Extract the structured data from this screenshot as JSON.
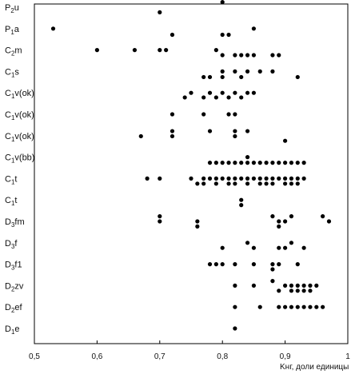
{
  "chart_data": {
    "type": "scatter",
    "title": "",
    "xlabel": "Kнг, доли единицы",
    "ylabel": "",
    "xlim": [
      0.5,
      1.0
    ],
    "x_ticks": [
      "0,5",
      "0,6",
      "0,7",
      "0,8",
      "0,9",
      "1"
    ],
    "categories": [
      "P2u",
      "P1a",
      "C2m",
      "C1s",
      "C1v(ok)",
      "C1v(ok)",
      "C1v(ok)",
      "C1v(bb)",
      "C1t",
      "C1t",
      "D3fm",
      "D3f",
      "D3f1",
      "D2zv",
      "D2ef",
      "D1e"
    ],
    "category_labels": [
      {
        "base": "P",
        "sub": "2",
        "rest": "u"
      },
      {
        "base": "P",
        "sub": "1",
        "rest": "a"
      },
      {
        "base": "C",
        "sub": "2",
        "rest": "m"
      },
      {
        "base": "C",
        "sub": "1",
        "rest": "s"
      },
      {
        "base": "C",
        "sub": "1",
        "rest": "v(ok)"
      },
      {
        "base": "C",
        "sub": "1",
        "rest": "v(ok)"
      },
      {
        "base": "C",
        "sub": "1",
        "rest": "v(ok)"
      },
      {
        "base": "C",
        "sub": "1",
        "rest": "v(bb)"
      },
      {
        "base": "C",
        "sub": "1",
        "rest": "t"
      },
      {
        "base": "C",
        "sub": "1",
        "rest": "t"
      },
      {
        "base": "D",
        "sub": "3",
        "rest": "fm"
      },
      {
        "base": "D",
        "sub": "3",
        "rest": "f"
      },
      {
        "base": "D",
        "sub": "3",
        "rest": "f1"
      },
      {
        "base": "D",
        "sub": "2",
        "rest": "zv"
      },
      {
        "base": "D",
        "sub": "2",
        "rest": "ef"
      },
      {
        "base": "D",
        "sub": "1",
        "rest": "e"
      }
    ],
    "marker_color": "#000000",
    "grid": false,
    "points": [
      {
        "x": 0.8,
        "c": 0,
        "o": -0.5
      },
      {
        "x": 0.7,
        "c": 0,
        "o": 0.5
      },
      {
        "x": 0.53,
        "c": 1,
        "o": 0
      },
      {
        "x": 0.85,
        "c": 1,
        "o": 0
      },
      {
        "x": 0.72,
        "c": 1,
        "o": 0.6
      },
      {
        "x": 0.8,
        "c": 1,
        "o": 0.6
      },
      {
        "x": 0.81,
        "c": 1,
        "o": 0.6
      },
      {
        "x": 0.6,
        "c": 2,
        "o": 0
      },
      {
        "x": 0.66,
        "c": 2,
        "o": 0
      },
      {
        "x": 0.7,
        "c": 2,
        "o": 0
      },
      {
        "x": 0.71,
        "c": 2,
        "o": 0
      },
      {
        "x": 0.79,
        "c": 2,
        "o": 0
      },
      {
        "x": 0.8,
        "c": 2,
        "o": 0.5
      },
      {
        "x": 0.82,
        "c": 2,
        "o": 0.5
      },
      {
        "x": 0.83,
        "c": 2,
        "o": 0.5
      },
      {
        "x": 0.84,
        "c": 2,
        "o": 0.5
      },
      {
        "x": 0.85,
        "c": 2,
        "o": 0.5
      },
      {
        "x": 0.88,
        "c": 2,
        "o": 0.5
      },
      {
        "x": 0.89,
        "c": 2,
        "o": 0.5
      },
      {
        "x": 0.8,
        "c": 3,
        "o": 0
      },
      {
        "x": 0.82,
        "c": 3,
        "o": 0
      },
      {
        "x": 0.84,
        "c": 3,
        "o": 0
      },
      {
        "x": 0.86,
        "c": 3,
        "o": 0
      },
      {
        "x": 0.88,
        "c": 3,
        "o": 0
      },
      {
        "x": 0.77,
        "c": 3,
        "o": 0.55
      },
      {
        "x": 0.78,
        "c": 3,
        "o": 0.55
      },
      {
        "x": 0.8,
        "c": 3,
        "o": 0.55
      },
      {
        "x": 0.92,
        "c": 3,
        "o": 0.55
      },
      {
        "x": 0.83,
        "c": 3,
        "o": 0.55
      },
      {
        "x": 0.75,
        "c": 4,
        "o": 0
      },
      {
        "x": 0.78,
        "c": 4,
        "o": 0
      },
      {
        "x": 0.8,
        "c": 4,
        "o": 0
      },
      {
        "x": 0.82,
        "c": 4,
        "o": 0
      },
      {
        "x": 0.84,
        "c": 4,
        "o": 0
      },
      {
        "x": 0.85,
        "c": 4,
        "o": 0
      },
      {
        "x": 0.74,
        "c": 4,
        "o": 0.45
      },
      {
        "x": 0.77,
        "c": 4,
        "o": 0.45
      },
      {
        "x": 0.79,
        "c": 4,
        "o": 0.45
      },
      {
        "x": 0.81,
        "c": 4,
        "o": 0.45
      },
      {
        "x": 0.83,
        "c": 4,
        "o": 0.45
      },
      {
        "x": 0.72,
        "c": 5,
        "o": 0
      },
      {
        "x": 0.77,
        "c": 5,
        "o": 0
      },
      {
        "x": 0.81,
        "c": 5,
        "o": 0
      },
      {
        "x": 0.82,
        "c": 5,
        "o": 0
      },
      {
        "x": 0.72,
        "c": 6,
        "o": -0.45
      },
      {
        "x": 0.78,
        "c": 6,
        "o": -0.45
      },
      {
        "x": 0.82,
        "c": 6,
        "o": -0.45
      },
      {
        "x": 0.84,
        "c": 6,
        "o": -0.45
      },
      {
        "x": 0.67,
        "c": 6,
        "o": 0.05
      },
      {
        "x": 0.72,
        "c": 6,
        "o": 0.05
      },
      {
        "x": 0.82,
        "c": 6,
        "o": 0.05
      },
      {
        "x": 0.9,
        "c": 6,
        "o": 0.5
      },
      {
        "x": 0.84,
        "c": 7,
        "o": 0
      },
      {
        "x": 0.78,
        "c": 7,
        "o": 0.55
      },
      {
        "x": 0.79,
        "c": 7,
        "o": 0.55
      },
      {
        "x": 0.8,
        "c": 7,
        "o": 0.55
      },
      {
        "x": 0.81,
        "c": 7,
        "o": 0.55
      },
      {
        "x": 0.82,
        "c": 7,
        "o": 0.55
      },
      {
        "x": 0.83,
        "c": 7,
        "o": 0.55
      },
      {
        "x": 0.84,
        "c": 7,
        "o": 0.55
      },
      {
        "x": 0.85,
        "c": 7,
        "o": 0.55
      },
      {
        "x": 0.86,
        "c": 7,
        "o": 0.55
      },
      {
        "x": 0.87,
        "c": 7,
        "o": 0.55
      },
      {
        "x": 0.88,
        "c": 7,
        "o": 0.55
      },
      {
        "x": 0.89,
        "c": 7,
        "o": 0.55
      },
      {
        "x": 0.9,
        "c": 7,
        "o": 0.55
      },
      {
        "x": 0.91,
        "c": 7,
        "o": 0.55
      },
      {
        "x": 0.92,
        "c": 7,
        "o": 0.55
      },
      {
        "x": 0.93,
        "c": 7,
        "o": 0.55
      },
      {
        "x": 0.68,
        "c": 8,
        "o": 0
      },
      {
        "x": 0.7,
        "c": 8,
        "o": 0
      },
      {
        "x": 0.75,
        "c": 8,
        "o": 0
      },
      {
        "x": 0.77,
        "c": 8,
        "o": 0
      },
      {
        "x": 0.78,
        "c": 8,
        "o": 0
      },
      {
        "x": 0.79,
        "c": 8,
        "o": 0
      },
      {
        "x": 0.8,
        "c": 8,
        "o": 0
      },
      {
        "x": 0.81,
        "c": 8,
        "o": 0
      },
      {
        "x": 0.82,
        "c": 8,
        "o": 0
      },
      {
        "x": 0.83,
        "c": 8,
        "o": 0
      },
      {
        "x": 0.84,
        "c": 8,
        "o": 0
      },
      {
        "x": 0.85,
        "c": 8,
        "o": 0
      },
      {
        "x": 0.86,
        "c": 8,
        "o": 0
      },
      {
        "x": 0.87,
        "c": 8,
        "o": 0
      },
      {
        "x": 0.88,
        "c": 8,
        "o": 0
      },
      {
        "x": 0.89,
        "c": 8,
        "o": 0
      },
      {
        "x": 0.9,
        "c": 8,
        "o": 0
      },
      {
        "x": 0.91,
        "c": 8,
        "o": 0
      },
      {
        "x": 0.92,
        "c": 8,
        "o": 0
      },
      {
        "x": 0.93,
        "c": 8,
        "o": 0
      },
      {
        "x": 0.76,
        "c": 8,
        "o": 0.5
      },
      {
        "x": 0.77,
        "c": 8,
        "o": 0.5
      },
      {
        "x": 0.79,
        "c": 8,
        "o": 0.5
      },
      {
        "x": 0.81,
        "c": 8,
        "o": 0.5
      },
      {
        "x": 0.82,
        "c": 8,
        "o": 0.5
      },
      {
        "x": 0.84,
        "c": 8,
        "o": 0.5
      },
      {
        "x": 0.86,
        "c": 8,
        "o": 0.5
      },
      {
        "x": 0.87,
        "c": 8,
        "o": 0.5
      },
      {
        "x": 0.88,
        "c": 8,
        "o": 0.5
      },
      {
        "x": 0.9,
        "c": 8,
        "o": 0.5
      },
      {
        "x": 0.91,
        "c": 8,
        "o": 0.5
      },
      {
        "x": 0.92,
        "c": 8,
        "o": 0.5
      },
      {
        "x": 0.83,
        "c": 9,
        "o": 0
      },
      {
        "x": 0.83,
        "c": 9,
        "o": 0.5
      },
      {
        "x": 0.7,
        "c": 10,
        "o": -0.5
      },
      {
        "x": 0.88,
        "c": 10,
        "o": -0.5
      },
      {
        "x": 0.91,
        "c": 10,
        "o": -0.5
      },
      {
        "x": 0.96,
        "c": 10,
        "o": -0.5
      },
      {
        "x": 0.7,
        "c": 10,
        "o": 0
      },
      {
        "x": 0.76,
        "c": 10,
        "o": 0
      },
      {
        "x": 0.89,
        "c": 10,
        "o": 0
      },
      {
        "x": 0.9,
        "c": 10,
        "o": 0
      },
      {
        "x": 0.97,
        "c": 10,
        "o": 0
      },
      {
        "x": 0.76,
        "c": 10,
        "o": 0.5
      },
      {
        "x": 0.89,
        "c": 10,
        "o": 0.5
      },
      {
        "x": 0.84,
        "c": 11,
        "o": 0
      },
      {
        "x": 0.91,
        "c": 11,
        "o": 0
      },
      {
        "x": 0.8,
        "c": 11,
        "o": 0.5
      },
      {
        "x": 0.85,
        "c": 11,
        "o": 0.5
      },
      {
        "x": 0.89,
        "c": 11,
        "o": 0.5
      },
      {
        "x": 0.9,
        "c": 11,
        "o": 0.5
      },
      {
        "x": 0.93,
        "c": 11,
        "o": 0.5
      },
      {
        "x": 0.78,
        "c": 12,
        "o": 0
      },
      {
        "x": 0.79,
        "c": 12,
        "o": 0
      },
      {
        "x": 0.8,
        "c": 12,
        "o": 0
      },
      {
        "x": 0.82,
        "c": 12,
        "o": 0
      },
      {
        "x": 0.85,
        "c": 12,
        "o": 0
      },
      {
        "x": 0.88,
        "c": 12,
        "o": 0
      },
      {
        "x": 0.89,
        "c": 12,
        "o": 0
      },
      {
        "x": 0.92,
        "c": 12,
        "o": 0
      },
      {
        "x": 0.88,
        "c": 12,
        "o": 0.5
      },
      {
        "x": 0.88,
        "c": 13,
        "o": -0.45
      },
      {
        "x": 0.82,
        "c": 13,
        "o": 0
      },
      {
        "x": 0.85,
        "c": 13,
        "o": 0
      },
      {
        "x": 0.9,
        "c": 13,
        "o": 0
      },
      {
        "x": 0.91,
        "c": 13,
        "o": 0
      },
      {
        "x": 0.92,
        "c": 13,
        "o": 0
      },
      {
        "x": 0.93,
        "c": 13,
        "o": 0
      },
      {
        "x": 0.94,
        "c": 13,
        "o": 0
      },
      {
        "x": 0.95,
        "c": 13,
        "o": 0
      },
      {
        "x": 0.89,
        "c": 13,
        "o": 0.5
      },
      {
        "x": 0.91,
        "c": 13,
        "o": 0.5
      },
      {
        "x": 0.92,
        "c": 13,
        "o": 0.5
      },
      {
        "x": 0.93,
        "c": 13,
        "o": 0.5
      },
      {
        "x": 0.94,
        "c": 13,
        "o": 0.5
      },
      {
        "x": 0.82,
        "c": 14,
        "o": 0
      },
      {
        "x": 0.86,
        "c": 14,
        "o": 0
      },
      {
        "x": 0.89,
        "c": 14,
        "o": 0
      },
      {
        "x": 0.9,
        "c": 14,
        "o": 0
      },
      {
        "x": 0.91,
        "c": 14,
        "o": 0
      },
      {
        "x": 0.92,
        "c": 14,
        "o": 0
      },
      {
        "x": 0.93,
        "c": 14,
        "o": 0
      },
      {
        "x": 0.94,
        "c": 14,
        "o": 0
      },
      {
        "x": 0.95,
        "c": 14,
        "o": 0
      },
      {
        "x": 0.96,
        "c": 14,
        "o": 0
      },
      {
        "x": 0.82,
        "c": 15,
        "o": 0
      }
    ]
  }
}
